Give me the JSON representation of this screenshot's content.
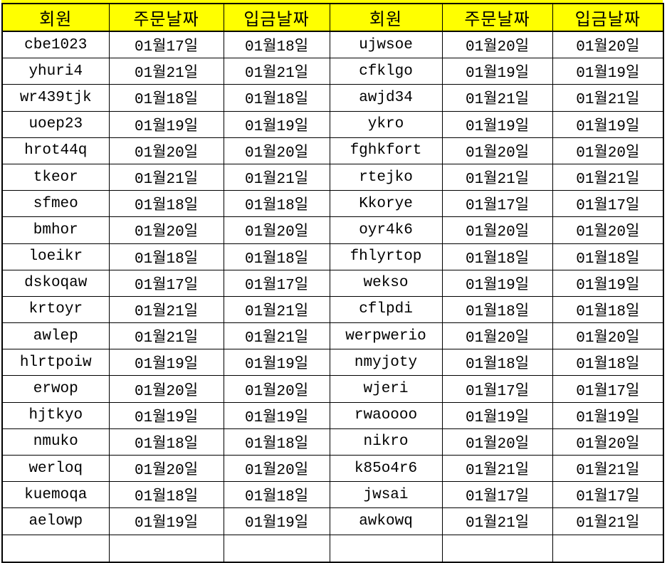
{
  "table": {
    "title_semantic": "member-order-deposit-table",
    "header": [
      "회원",
      "주문날짜",
      "입금날짜",
      "회원",
      "주문날짜",
      "입금날짜"
    ],
    "column_roles": [
      "member",
      "order-date",
      "deposit-date",
      "member",
      "order-date",
      "deposit-date"
    ],
    "rows": [
      [
        "cbe1023",
        "01월17일",
        "01월18일",
        "ujwsoe",
        "01월20일",
        "01월20일"
      ],
      [
        "yhuri4",
        "01월21일",
        "01월21일",
        "cfklgo",
        "01월19일",
        "01월19일"
      ],
      [
        "wr439tjk",
        "01월18일",
        "01월18일",
        "awjd34",
        "01월21일",
        "01월21일"
      ],
      [
        "uoep23",
        "01월19일",
        "01월19일",
        "ykro",
        "01월19일",
        "01월19일"
      ],
      [
        "hrot44q",
        "01월20일",
        "01월20일",
        "fghkfort",
        "01월20일",
        "01월20일"
      ],
      [
        "tkeor",
        "01월21일",
        "01월21일",
        "rtejko",
        "01월21일",
        "01월21일"
      ],
      [
        "sfmeo",
        "01월18일",
        "01월18일",
        "Kkorye",
        "01월17일",
        "01월17일"
      ],
      [
        "bmhor",
        "01월20일",
        "01월20일",
        "oyr4k6",
        "01월20일",
        "01월20일"
      ],
      [
        "loeikr",
        "01월18일",
        "01월18일",
        "fhlyrtop",
        "01월18일",
        "01월18일"
      ],
      [
        "dskoqaw",
        "01월17일",
        "01월17일",
        "wekso",
        "01월19일",
        "01월19일"
      ],
      [
        "krtoyr",
        "01월21일",
        "01월21일",
        "cflpdi",
        "01월18일",
        "01월18일"
      ],
      [
        "awlep",
        "01월21일",
        "01월21일",
        "werpwerio",
        "01월20일",
        "01월20일"
      ],
      [
        "hlrtpoiw",
        "01월19일",
        "01월19일",
        "nmyjoty",
        "01월18일",
        "01월18일"
      ],
      [
        "erwop",
        "01월20일",
        "01월20일",
        "wjeri",
        "01월17일",
        "01월17일"
      ],
      [
        "hjtkyo",
        "01월19일",
        "01월19일",
        "rwaoooo",
        "01월19일",
        "01월19일"
      ],
      [
        "nmuko",
        "01월18일",
        "01월18일",
        "nikro",
        "01월20일",
        "01월20일"
      ],
      [
        "werloq",
        "01월20일",
        "01월20일",
        "k85o4r6",
        "01월21일",
        "01월21일"
      ],
      [
        "kuemoqa",
        "01월18일",
        "01월18일",
        "jwsai",
        "01월17일",
        "01월17일"
      ],
      [
        "aelowp",
        "01월19일",
        "01월19일",
        "awkowq",
        "01월21일",
        "01월21일"
      ]
    ],
    "partial_bottom_row_visible": true,
    "colors": {
      "header_bg": "#FFFF00",
      "border": "#000000",
      "text": "#000000",
      "cell_bg": "#FFFFFF"
    }
  }
}
